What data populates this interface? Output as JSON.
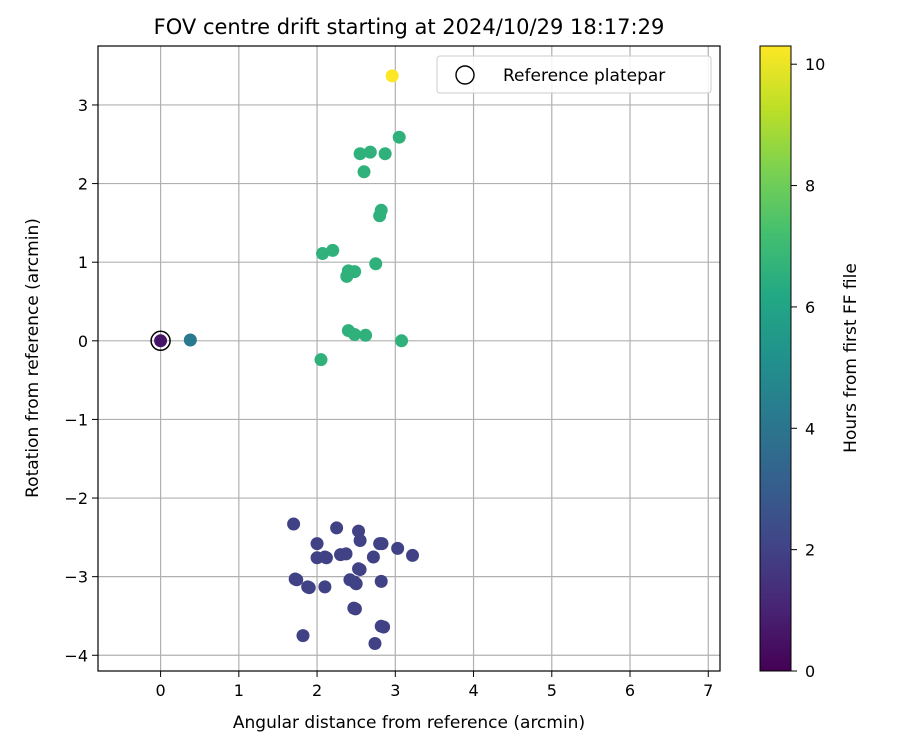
{
  "chart_data": {
    "type": "scatter",
    "title": "FOV centre drift starting at 2024/10/29 18:17:29",
    "xlabel": "Angular distance from reference (arcmin)",
    "ylabel": "Rotation from reference (arcmin)",
    "xlim": [
      -0.8,
      7.15
    ],
    "ylim": [
      -4.2,
      3.75
    ],
    "xticks": [
      0,
      1,
      2,
      3,
      4,
      5,
      6,
      7
    ],
    "yticks": [
      3,
      2,
      1,
      0,
      -1,
      -2,
      -3,
      -4
    ],
    "grid": true,
    "legend": {
      "position": "top-right",
      "entries": [
        "Reference platepar"
      ]
    },
    "reference_point": {
      "x": 0,
      "y": 0
    },
    "colorbar": {
      "label": "Hours from first FF file",
      "range": [
        0,
        10.3
      ],
      "ticks": [
        0,
        2,
        4,
        6,
        8,
        10
      ],
      "colormap": "viridis"
    },
    "series": [
      {
        "points": [
          {
            "x": 0,
            "y": 0,
            "c": 0.6
          },
          {
            "x": 0.38,
            "y": 0.01,
            "c": 4.2
          },
          {
            "x": 1.7,
            "y": -2.33,
            "c": 2.0
          },
          {
            "x": 1.72,
            "y": -3.03,
            "c": 2.0
          },
          {
            "x": 1.74,
            "y": -3.04,
            "c": 2.0
          },
          {
            "x": 1.82,
            "y": -3.75,
            "c": 2.0
          },
          {
            "x": 1.88,
            "y": -3.13,
            "c": 2.0
          },
          {
            "x": 1.9,
            "y": -3.14,
            "c": 2.0
          },
          {
            "x": 2.0,
            "y": -2.58,
            "c": 2.0
          },
          {
            "x": 2.0,
            "y": -2.76,
            "c": 2.0
          },
          {
            "x": 2.1,
            "y": -2.75,
            "c": 2.0
          },
          {
            "x": 2.12,
            "y": -2.76,
            "c": 2.0
          },
          {
            "x": 2.1,
            "y": -3.13,
            "c": 2.0
          },
          {
            "x": 2.25,
            "y": -2.38,
            "c": 2.0
          },
          {
            "x": 2.3,
            "y": -2.72,
            "c": 2.0
          },
          {
            "x": 2.37,
            "y": -2.71,
            "c": 2.0
          },
          {
            "x": 2.42,
            "y": -3.04,
            "c": 2.0
          },
          {
            "x": 2.47,
            "y": -3.4,
            "c": 2.0
          },
          {
            "x": 2.49,
            "y": -3.41,
            "c": 2.0
          },
          {
            "x": 2.48,
            "y": -3.07,
            "c": 2.0
          },
          {
            "x": 2.5,
            "y": -3.09,
            "c": 2.0
          },
          {
            "x": 2.53,
            "y": -2.42,
            "c": 2.0
          },
          {
            "x": 2.55,
            "y": -2.54,
            "c": 2.0
          },
          {
            "x": 2.53,
            "y": -2.9,
            "c": 2.0
          },
          {
            "x": 2.55,
            "y": -2.91,
            "c": 2.0
          },
          {
            "x": 2.72,
            "y": -2.75,
            "c": 2.0
          },
          {
            "x": 2.74,
            "y": -3.85,
            "c": 2.0
          },
          {
            "x": 2.8,
            "y": -2.58,
            "c": 2.0
          },
          {
            "x": 2.83,
            "y": -2.58,
            "c": 2.0
          },
          {
            "x": 2.82,
            "y": -3.06,
            "c": 2.0
          },
          {
            "x": 2.82,
            "y": -3.63,
            "c": 2.0
          },
          {
            "x": 2.85,
            "y": -3.64,
            "c": 2.0
          },
          {
            "x": 3.03,
            "y": -2.64,
            "c": 2.0
          },
          {
            "x": 3.22,
            "y": -2.73,
            "c": 2.0
          },
          {
            "x": 2.05,
            "y": -0.24,
            "c": 6.6
          },
          {
            "x": 2.07,
            "y": 1.11,
            "c": 6.6
          },
          {
            "x": 2.2,
            "y": 1.15,
            "c": 6.6
          },
          {
            "x": 2.38,
            "y": 0.82,
            "c": 6.6
          },
          {
            "x": 2.4,
            "y": 0.89,
            "c": 6.6
          },
          {
            "x": 2.48,
            "y": 0.88,
            "c": 6.6
          },
          {
            "x": 2.4,
            "y": 0.13,
            "c": 6.6
          },
          {
            "x": 2.48,
            "y": 0.08,
            "c": 6.6
          },
          {
            "x": 2.62,
            "y": 0.07,
            "c": 6.6
          },
          {
            "x": 2.75,
            "y": 0.98,
            "c": 6.6
          },
          {
            "x": 2.8,
            "y": 1.59,
            "c": 6.6
          },
          {
            "x": 2.82,
            "y": 1.66,
            "c": 6.6
          },
          {
            "x": 2.55,
            "y": 2.38,
            "c": 6.6
          },
          {
            "x": 2.6,
            "y": 2.15,
            "c": 6.6
          },
          {
            "x": 2.68,
            "y": 2.4,
            "c": 6.6
          },
          {
            "x": 2.87,
            "y": 2.38,
            "c": 6.6
          },
          {
            "x": 3.05,
            "y": 2.59,
            "c": 6.6
          },
          {
            "x": 3.08,
            "y": 0.0,
            "c": 6.6
          },
          {
            "x": 2.96,
            "y": 3.37,
            "c": 10.3
          }
        ]
      }
    ]
  }
}
